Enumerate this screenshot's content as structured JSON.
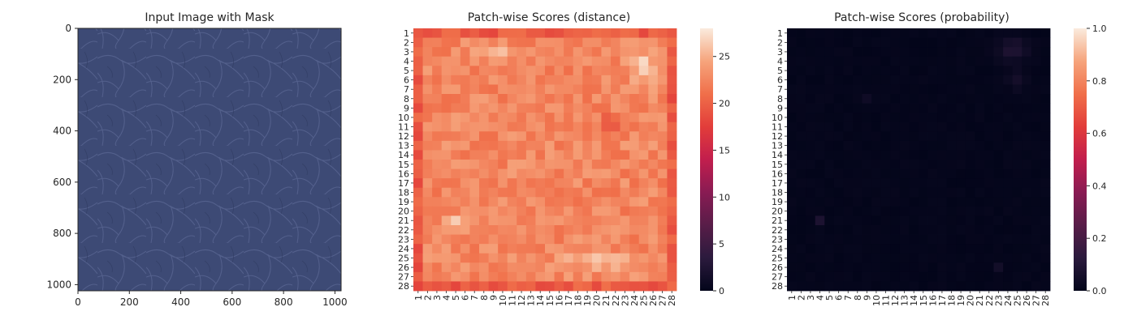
{
  "chart_data": [
    {
      "type": "image",
      "title": "Input Image with Mask",
      "image_description": "blue-grey leather texture",
      "image_color": "#3d4a75",
      "xlim": [
        0,
        1024
      ],
      "ylim": [
        1024,
        0
      ],
      "xticks": [
        0,
        200,
        400,
        600,
        800,
        1000
      ],
      "yticks": [
        0,
        200,
        400,
        600,
        800,
        1000
      ],
      "xtick_labels": [
        "0",
        "200",
        "400",
        "600",
        "800",
        "1000"
      ],
      "ytick_labels": [
        "0",
        "200",
        "400",
        "600",
        "800",
        "1000"
      ]
    },
    {
      "type": "heatmap",
      "title": "Patch-wise Scores (distance)",
      "rows": 28,
      "cols": 28,
      "row_labels": [
        "1",
        "2",
        "3",
        "4",
        "5",
        "6",
        "7",
        "8",
        "9",
        "10",
        "11",
        "12",
        "13",
        "14",
        "15",
        "16",
        "17",
        "18",
        "19",
        "20",
        "21",
        "22",
        "23",
        "24",
        "25",
        "26",
        "27",
        "28"
      ],
      "col_labels": [
        "1",
        "2",
        "3",
        "4",
        "5",
        "6",
        "7",
        "8",
        "9",
        "10",
        "11",
        "12",
        "13",
        "14",
        "15",
        "16",
        "17",
        "18",
        "19",
        "20",
        "21",
        "22",
        "23",
        "24",
        "25",
        "26",
        "27",
        "28"
      ],
      "colormap": "rocket",
      "vmin": 0,
      "vmax": 28,
      "colorbar_ticks": [
        0,
        5,
        10,
        15,
        20,
        25
      ],
      "colorbar_tick_labels": [
        "0",
        "5",
        "10",
        "15",
        "20",
        "25"
      ],
      "value_summary": "border cells around 17-20, interior cells mostly 21-24, bright regions (25-28) near rows 3-7 at columns 23-27 and rows 21-22 at columns 4-6"
    },
    {
      "type": "heatmap",
      "title": "Patch-wise Scores (probability)",
      "rows": 28,
      "cols": 28,
      "row_labels": [
        "1",
        "2",
        "3",
        "4",
        "5",
        "6",
        "7",
        "8",
        "9",
        "10",
        "11",
        "12",
        "13",
        "14",
        "15",
        "16",
        "17",
        "18",
        "19",
        "20",
        "21",
        "22",
        "23",
        "24",
        "25",
        "26",
        "27",
        "28"
      ],
      "col_labels": [
        "1",
        "2",
        "3",
        "4",
        "5",
        "6",
        "7",
        "8",
        "9",
        "10",
        "11",
        "12",
        "13",
        "14",
        "15",
        "16",
        "17",
        "18",
        "19",
        "20",
        "21",
        "22",
        "23",
        "24",
        "25",
        "26",
        "27",
        "28"
      ],
      "colormap": "rocket",
      "vmin": 0.0,
      "vmax": 1.0,
      "colorbar_ticks": [
        0.0,
        0.2,
        0.4,
        0.6,
        0.8,
        1.0
      ],
      "colorbar_tick_labels": [
        "0.0",
        "0.2",
        "0.4",
        "0.6",
        "0.8",
        "1.0"
      ],
      "value_summary": "almost all cells near 0.0; a few faintly above 0 (about 0.03-0.08) near rows 2-7 at columns 23-26, row 21 at column 4, row 26 at column 23"
    }
  ]
}
